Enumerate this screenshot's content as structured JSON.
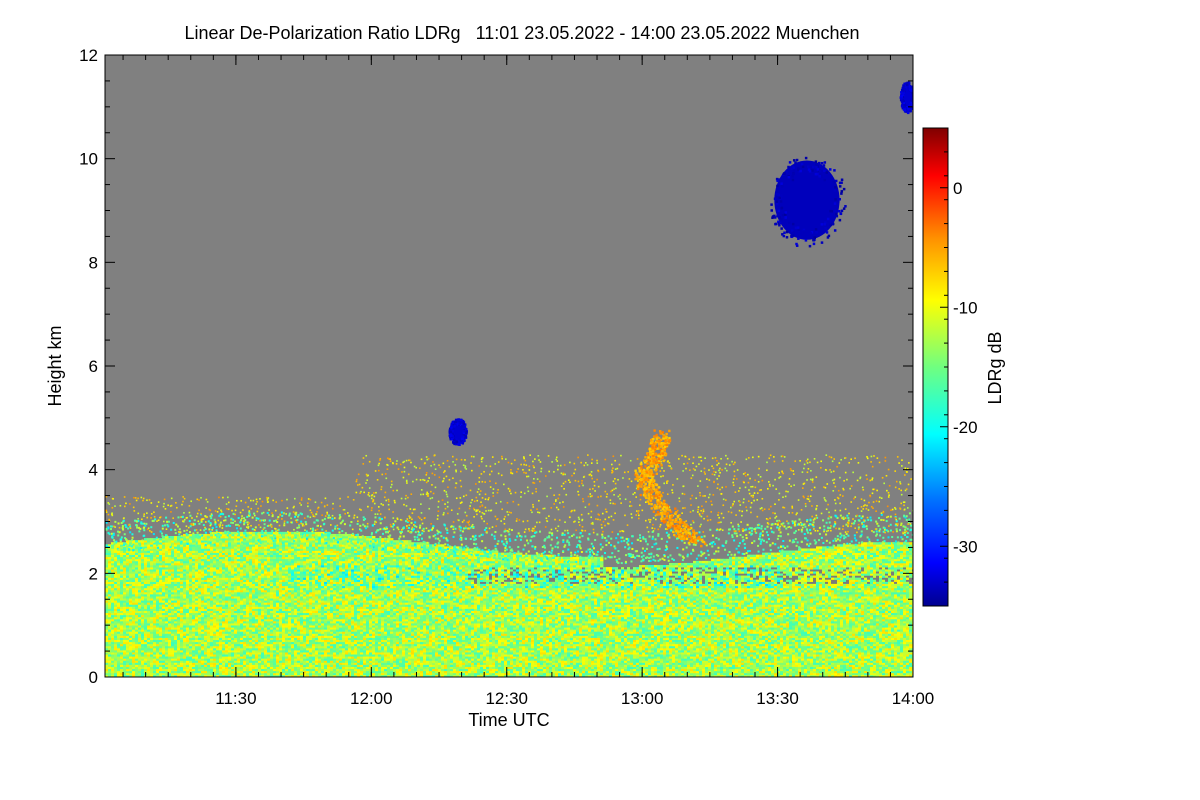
{
  "chart_data": {
    "type": "heatmap",
    "title": "Linear De-Polarization Ratio LDRg   11:01 23.05.2022 - 14:00 23.05.2022 Muenchen",
    "xlabel": "Time UTC",
    "ylabel": "Height km",
    "colorbar_label": "LDRg dB",
    "x_range_utc": [
      "11:01",
      "14:00"
    ],
    "x_tick_labels": [
      "11:30",
      "12:00",
      "12:30",
      "13:00",
      "13:30",
      "14:00"
    ],
    "x_tick_minutes": [
      29,
      59,
      89,
      119,
      149,
      179
    ],
    "x_minor_step_minutes": 5,
    "ylim": [
      0,
      12
    ],
    "y_tick_labels": [
      "0",
      "2",
      "4",
      "6",
      "8",
      "10",
      "12"
    ],
    "y_ticks": [
      0,
      2,
      4,
      6,
      8,
      10,
      12
    ],
    "colorbar_range_db": [
      -35,
      5
    ],
    "colorbar_tick_labels": [
      "0",
      "-10",
      "-20",
      "-30"
    ],
    "colorbar_ticks_db": [
      0,
      -10,
      -20,
      -30
    ],
    "no_data_color": "#808080",
    "colormap": [
      "#00008f",
      "#0000ff",
      "#0070ff",
      "#00ffff",
      "#70ff80",
      "#ffff00",
      "#ff9000",
      "#ff0000",
      "#800000"
    ],
    "features": [
      {
        "name": "boundary-layer",
        "minutes": [
          0,
          179
        ],
        "height_km": [
          0,
          2.8
        ],
        "ldr_db": -13
      },
      {
        "name": "aerosol-layer-top",
        "minutes": [
          0,
          179
        ],
        "height_km": [
          2.5,
          3.0
        ],
        "ldr_db": -16
      },
      {
        "name": "scattered-aerosol",
        "minutes": [
          55,
          179
        ],
        "height_km": [
          3.0,
          4.3
        ],
        "ldr_db": -9
      },
      {
        "name": "orange-plume",
        "minutes": [
          115,
          130
        ],
        "height_km": [
          2.6,
          4.8
        ],
        "ldr_db": -6
      },
      {
        "name": "blue-cloud-small",
        "minutes": [
          76,
          80
        ],
        "height_km": [
          4.5,
          5.0
        ],
        "ldr_db": -32
      },
      {
        "name": "blue-cloud-large",
        "minutes": [
          147,
          164
        ],
        "height_km": [
          8.3,
          10.1
        ],
        "ldr_db": -33
      },
      {
        "name": "blue-cloud-edge",
        "minutes": [
          176,
          179
        ],
        "height_km": [
          10.9,
          11.5
        ],
        "ldr_db": -32
      }
    ]
  }
}
